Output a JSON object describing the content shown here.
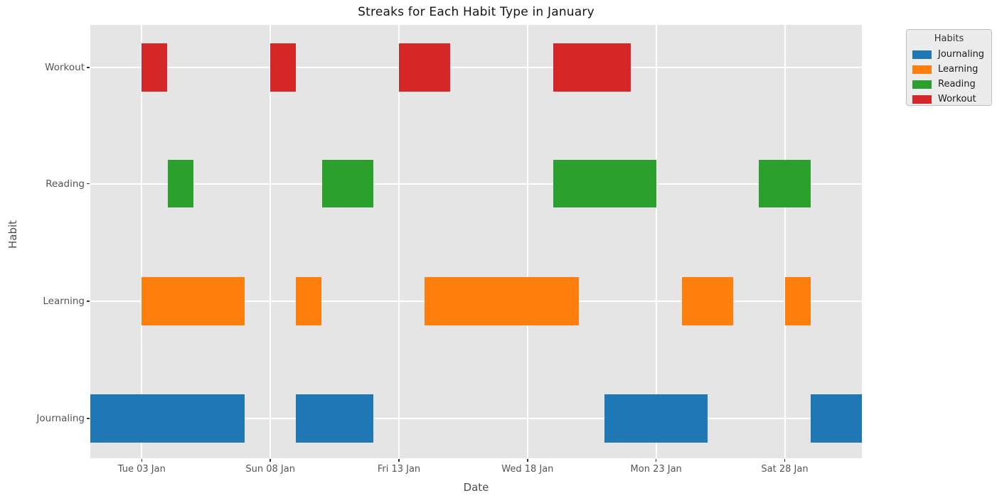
{
  "chart_data": {
    "type": "broken_barh_timeline",
    "title": "Streaks for Each Habit Type in January",
    "xlabel": "Date",
    "ylabel": "Habit",
    "x_axis": {
      "unit": "day_of_january",
      "min": 1,
      "max": 31,
      "grid": true,
      "ticks": [
        {
          "day": 3,
          "label": "Tue 03 Jan"
        },
        {
          "day": 8,
          "label": "Sun 08 Jan"
        },
        {
          "day": 13,
          "label": "Fri 13 Jan"
        },
        {
          "day": 18,
          "label": "Wed 18 Jan"
        },
        {
          "day": 23,
          "label": "Mon 23 Jan"
        },
        {
          "day": 28,
          "label": "Sat 28 Jan"
        }
      ]
    },
    "rows_top_to_bottom": [
      "Workout",
      "Reading",
      "Learning",
      "Journaling"
    ],
    "series": [
      {
        "name": "Workout",
        "color": "#d62728",
        "row_center_frac": 0.0984,
        "streaks": [
          [
            3,
            4
          ],
          [
            8,
            9
          ],
          [
            13,
            15
          ],
          [
            19,
            22
          ]
        ]
      },
      {
        "name": "Reading",
        "color": "#2ca02c",
        "row_center_frac": 0.3664,
        "streaks": [
          [
            4,
            5
          ],
          [
            10,
            12
          ],
          [
            19,
            23
          ],
          [
            27,
            29
          ]
        ]
      },
      {
        "name": "Learning",
        "color": "#ff7f0e",
        "row_center_frac": 0.6377,
        "streaks": [
          [
            3,
            7
          ],
          [
            9,
            10
          ],
          [
            14,
            20
          ],
          [
            24,
            26
          ],
          [
            28,
            29
          ]
        ]
      },
      {
        "name": "Journaling",
        "color": "#1f77b4",
        "row_center_frac": 0.9082,
        "streaks": [
          [
            1,
            7
          ],
          [
            9,
            12
          ],
          [
            21,
            25
          ],
          [
            29,
            31
          ]
        ]
      }
    ],
    "bar_height_frac": 0.11,
    "legend": {
      "title": "Habits",
      "position": "outside_top_right",
      "entries": [
        {
          "label": "Journaling",
          "color": "#1f77b4"
        },
        {
          "label": "Learning",
          "color": "#ff7f0e"
        },
        {
          "label": "Reading",
          "color": "#2ca02c"
        },
        {
          "label": "Workout",
          "color": "#d62728"
        }
      ]
    },
    "colors": {
      "figure_background": "#ffffff",
      "axes_background": "#e5e5e5",
      "grid": "#ffffff",
      "tick_label": "#555555",
      "axis_label": "#4d4d4d",
      "title": "#141414"
    }
  }
}
